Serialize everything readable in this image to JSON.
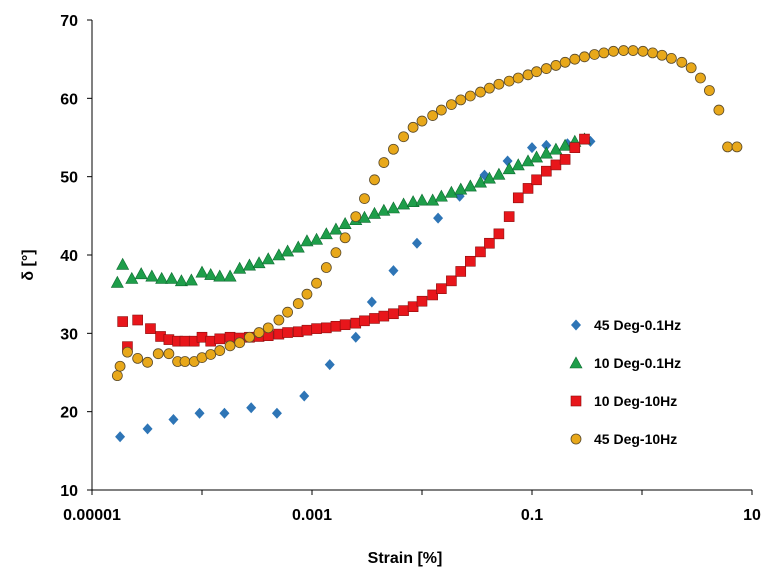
{
  "chart_data": {
    "type": "scatter",
    "title": "",
    "xlabel": "Strain [%]",
    "ylabel": "δ [°]",
    "x_scale": "log",
    "xlim": [
      1e-05,
      10
    ],
    "ylim": [
      10,
      70
    ],
    "x_ticks": [
      "0.00001",
      "0.001",
      "0.1",
      "10"
    ],
    "y_ticks": [
      "10",
      "20",
      "30",
      "40",
      "50",
      "60",
      "70"
    ],
    "grid": false,
    "legend_position": "right, lower-middle",
    "series": [
      {
        "name": "45 Deg-0.1Hz",
        "marker": "diamond",
        "color": "#2E75B6",
        "x": [
          1.8e-05,
          3.2e-05,
          5.5e-05,
          9.5e-05,
          0.00016,
          0.00028,
          0.00048,
          0.00085,
          0.00145,
          0.0025,
          0.0035,
          0.0055,
          0.009,
          0.014,
          0.022,
          0.037,
          0.06,
          0.1,
          0.135,
          0.21,
          0.34
        ],
        "y": [
          16.8,
          17.8,
          19,
          19.8,
          19.8,
          20.5,
          19.8,
          22,
          26,
          29.5,
          34,
          38,
          41.5,
          44.7,
          47.5,
          50.2,
          52,
          53.7,
          54,
          54.2,
          54.5
        ]
      },
      {
        "name": "10 Deg-0.1Hz",
        "marker": "triangle",
        "color": "#1E9E4A",
        "x": [
          1.7e-05,
          1.9e-05,
          2.3e-05,
          2.8e-05,
          3.5e-05,
          4.3e-05,
          5.3e-05,
          6.5e-05,
          8e-05,
          0.0001,
          0.00012,
          0.000145,
          0.00018,
          0.00022,
          0.00027,
          0.00033,
          0.0004,
          0.0005,
          0.0006,
          0.00075,
          0.0009,
          0.0011,
          0.00135,
          0.00165,
          0.002,
          0.0025,
          0.003,
          0.0037,
          0.0045,
          0.0055,
          0.0068,
          0.0083,
          0.01,
          0.0125,
          0.015,
          0.0185,
          0.0225,
          0.0275,
          0.034,
          0.041,
          0.05,
          0.062,
          0.075,
          0.092,
          0.11,
          0.135,
          0.165,
          0.2,
          0.245,
          0.3
        ],
        "y": [
          36.5,
          38.8,
          37,
          37.6,
          37.3,
          37,
          37,
          36.7,
          36.8,
          37.8,
          37.5,
          37.3,
          37.3,
          38.3,
          38.7,
          39,
          39.5,
          40,
          40.5,
          41,
          41.8,
          42,
          42.7,
          43.3,
          44,
          44.5,
          44.8,
          45.3,
          45.7,
          46,
          46.5,
          46.8,
          47,
          47,
          47.5,
          48,
          48.4,
          48.8,
          49.3,
          49.8,
          50.3,
          51,
          51.5,
          52,
          52.5,
          53,
          53.5,
          54,
          54.5,
          54.8
        ]
      },
      {
        "name": "10 Deg-10Hz",
        "marker": "square",
        "color": "#E8161B",
        "x": [
          1.9e-05,
          2.1e-05,
          2.6e-05,
          3.4e-05,
          4.2e-05,
          5e-05,
          6e-05,
          7e-05,
          8.5e-05,
          0.0001,
          0.00012,
          0.000145,
          0.00018,
          0.00022,
          0.00027,
          0.00033,
          0.0004,
          0.0005,
          0.0006,
          0.00075,
          0.0009,
          0.0011,
          0.00135,
          0.00165,
          0.002,
          0.0025,
          0.003,
          0.0037,
          0.0045,
          0.0055,
          0.0068,
          0.0083,
          0.01,
          0.0125,
          0.015,
          0.0185,
          0.0225,
          0.0275,
          0.034,
          0.041,
          0.05,
          0.062,
          0.075,
          0.092,
          0.11,
          0.135,
          0.165,
          0.2,
          0.245,
          0.3
        ],
        "y": [
          31.5,
          28.3,
          31.7,
          30.6,
          29.6,
          29.2,
          29.0,
          29.0,
          29.0,
          29.5,
          29.0,
          29.3,
          29.5,
          29.4,
          29.5,
          29.6,
          29.7,
          29.9,
          30.1,
          30.2,
          30.4,
          30.6,
          30.7,
          30.9,
          31.1,
          31.3,
          31.6,
          31.9,
          32.2,
          32.5,
          32.9,
          33.4,
          34.1,
          34.9,
          35.7,
          36.7,
          37.9,
          39.2,
          40.4,
          41.5,
          42.7,
          44.9,
          47.3,
          48.5,
          49.6,
          50.7,
          51.5,
          52.2,
          53.7,
          54.8
        ]
      },
      {
        "name": "45 Deg-10Hz",
        "marker": "circle",
        "color": "#E8A81A",
        "x": [
          1.7e-05,
          1.8e-05,
          2.1e-05,
          2.6e-05,
          3.2e-05,
          4e-05,
          5e-05,
          6e-05,
          7e-05,
          8.5e-05,
          0.0001,
          0.00012,
          0.000145,
          0.00018,
          0.00022,
          0.00027,
          0.00033,
          0.0004,
          0.0005,
          0.0006,
          0.00075,
          0.0009,
          0.0011,
          0.00135,
          0.00165,
          0.002,
          0.0025,
          0.003,
          0.0037,
          0.0045,
          0.0055,
          0.0068,
          0.0083,
          0.01,
          0.0125,
          0.015,
          0.0185,
          0.0225,
          0.0275,
          0.034,
          0.041,
          0.05,
          0.062,
          0.075,
          0.092,
          0.11,
          0.135,
          0.165,
          0.2,
          0.245,
          0.3,
          0.37,
          0.45,
          0.55,
          0.68,
          0.83,
          1.02,
          1.25,
          1.52,
          1.85,
          2.3,
          2.8,
          3.4,
          4.1,
          5,
          6,
          7.3
        ],
        "y": [
          24.6,
          25.8,
          27.6,
          26.8,
          26.3,
          27.4,
          27.4,
          26.4,
          26.4,
          26.4,
          26.9,
          27.3,
          27.8,
          28.4,
          28.8,
          29.5,
          30.1,
          30.7,
          31.7,
          32.7,
          33.8,
          35,
          36.4,
          38.4,
          40.3,
          42.2,
          44.9,
          47.2,
          49.6,
          51.8,
          53.5,
          55.1,
          56.3,
          57.1,
          57.8,
          58.5,
          59.2,
          59.8,
          60.3,
          60.8,
          61.3,
          61.8,
          62.2,
          62.6,
          63.0,
          63.4,
          63.8,
          64.2,
          64.6,
          65.0,
          65.3,
          65.6,
          65.8,
          66.0,
          66.1,
          66.1,
          66.0,
          65.8,
          65.5,
          65.1,
          64.6,
          63.9,
          62.6,
          61.0,
          58.5,
          53.8,
          53.8
        ]
      }
    ]
  }
}
